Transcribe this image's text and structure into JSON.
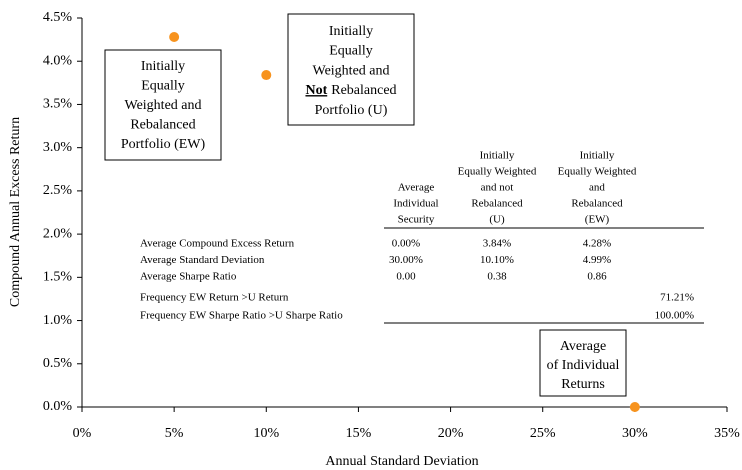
{
  "chart_data": {
    "type": "scatter",
    "x_label": "Annual Standard Deviation",
    "y_label": "Compound Annual Excess Return",
    "xlim": [
      0,
      35
    ],
    "ylim": [
      0,
      4.5
    ],
    "xticks": [
      {
        "value": 0,
        "label": "0%"
      },
      {
        "value": 5,
        "label": "5%"
      },
      {
        "value": 10,
        "label": "10%"
      },
      {
        "value": 15,
        "label": "15%"
      },
      {
        "value": 20,
        "label": "20%"
      },
      {
        "value": 25,
        "label": "25%"
      },
      {
        "value": 30,
        "label": "30%"
      },
      {
        "value": 35,
        "label": "35%"
      }
    ],
    "yticks": [
      {
        "value": 0,
        "label": "0.0%"
      },
      {
        "value": 0.5,
        "label": "0.5%"
      },
      {
        "value": 1,
        "label": "1.0%"
      },
      {
        "value": 1.5,
        "label": "1.5%"
      },
      {
        "value": 2,
        "label": "2.0%"
      },
      {
        "value": 2.5,
        "label": "2.5%"
      },
      {
        "value": 3,
        "label": "3.0%"
      },
      {
        "value": 3.5,
        "label": "3.5%"
      },
      {
        "value": 4,
        "label": "4.0%"
      },
      {
        "value": 4.5,
        "label": "4.5%"
      }
    ],
    "series": [
      {
        "color": "#f7931e",
        "x": [
          5,
          10,
          30
        ],
        "values": [
          4.28,
          3.84,
          0
        ]
      }
    ],
    "annotations": [
      {
        "lines": [
          [
            {
              "text": "Initially"
            }
          ],
          [
            {
              "text": "Equally"
            }
          ],
          [
            {
              "text": "Weighted and"
            }
          ],
          [
            {
              "text": "Rebalanced"
            }
          ],
          [
            {
              "text": "Portfolio (EW)"
            }
          ]
        ]
      },
      {
        "lines": [
          [
            {
              "text": "Initially"
            }
          ],
          [
            {
              "text": "Equally"
            }
          ],
          [
            {
              "text": "Weighted and"
            }
          ],
          [
            {
              "text": "Not",
              "bold": true
            },
            {
              "text": "Rebalanced"
            }
          ],
          [
            {
              "text": "Portfolio (U)"
            }
          ]
        ]
      },
      {
        "lines": [
          [
            {
              "text": "Average"
            }
          ],
          [
            {
              "text": "of Individual"
            }
          ],
          [
            {
              "text": "Returns"
            }
          ]
        ]
      }
    ],
    "table": {
      "columns": [
        [
          "Average",
          "Individual",
          "Security"
        ],
        [
          "Initially",
          "Equally Weighted",
          "and not",
          "Rebalanced",
          "(U)"
        ],
        [
          "Initially",
          "Equally Weighted",
          "and",
          "Rebalanced",
          "(EW)"
        ]
      ],
      "rows": [
        {
          "label": "Average Compound Excess Return",
          "cells": [
            "0.00%",
            "3.84%",
            "4.28%"
          ]
        },
        {
          "label": "Average Standard Deviation",
          "cells": [
            "30.00%",
            "10.10%",
            "4.99%"
          ]
        },
        {
          "label": "Average Sharpe Ratio",
          "cells": [
            "0.00",
            "0.38",
            "0.86"
          ]
        }
      ],
      "frequency_rows": [
        {
          "label": "Frequency EW Return >U Return",
          "value": "71.21%"
        },
        {
          "label": "Frequency EW Sharpe Ratio >U Sharpe Ratio",
          "value": "100.00%"
        }
      ]
    }
  }
}
